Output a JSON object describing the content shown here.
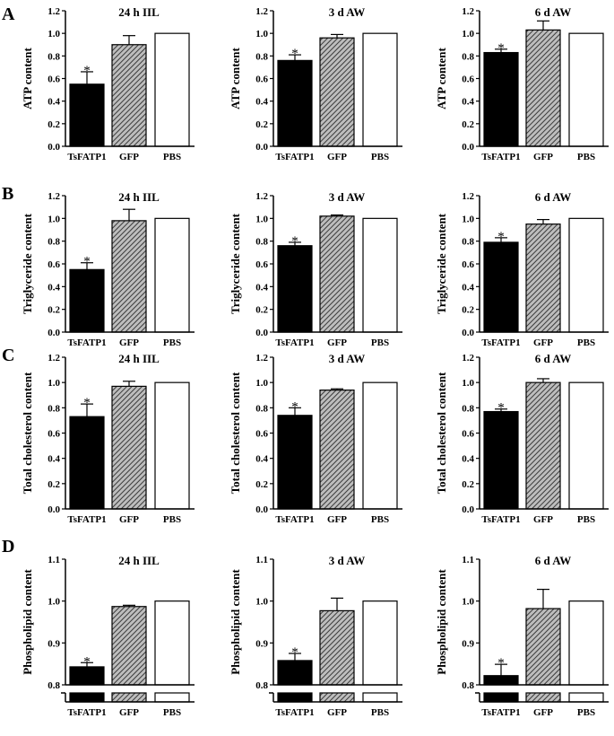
{
  "panels": [
    {
      "label": "A",
      "ylabel": "ATP content"
    },
    {
      "label": "B",
      "ylabel": "Triglyceride content"
    },
    {
      "label": "C",
      "ylabel": "Total cholesterol content"
    },
    {
      "label": "D",
      "ylabel": "Phospholipid content"
    }
  ],
  "colors": {
    "tsfatp1": "#000000",
    "gfp": "#8a8a8a",
    "pbs": "#ffffff",
    "axis": "#000000"
  },
  "chart_data": [
    {
      "type": "bar",
      "panel": "A",
      "title": "24 h IIL",
      "ylabel": "ATP content",
      "categories": [
        "TsFATP1",
        "GFP",
        "PBS"
      ],
      "values": [
        0.55,
        0.9,
        1.0
      ],
      "errors": [
        0.11,
        0.08,
        0.0
      ],
      "significance": [
        "*",
        "",
        ""
      ],
      "ylim": [
        0,
        1.2
      ],
      "yticks": [
        "0.0",
        "0.2",
        "0.4",
        "0.6",
        "0.8",
        "1.0",
        "1.2"
      ],
      "broken_axis": false
    },
    {
      "type": "bar",
      "panel": "A",
      "title": "3 d AW",
      "ylabel": "ATP content",
      "categories": [
        "TsFATP1",
        "GFP",
        "PBS"
      ],
      "values": [
        0.76,
        0.96,
        1.0
      ],
      "errors": [
        0.05,
        0.03,
        0.0
      ],
      "significance": [
        "*",
        "",
        ""
      ],
      "ylim": [
        0,
        1.2
      ],
      "yticks": [
        "0.0",
        "0.2",
        "0.4",
        "0.6",
        "0.8",
        "1.0",
        "1.2"
      ],
      "broken_axis": false
    },
    {
      "type": "bar",
      "panel": "A",
      "title": "6 d AW",
      "ylabel": "ATP content",
      "categories": [
        "TsFATP1",
        "GFP",
        "PBS"
      ],
      "values": [
        0.83,
        1.03,
        1.0
      ],
      "errors": [
        0.03,
        0.08,
        0.0
      ],
      "significance": [
        "*",
        "",
        ""
      ],
      "ylim": [
        0,
        1.2
      ],
      "yticks": [
        "0.0",
        "0.2",
        "0.4",
        "0.6",
        "0.8",
        "1.0",
        "1.2"
      ],
      "broken_axis": false
    },
    {
      "type": "bar",
      "panel": "B",
      "title": "24 h IIL",
      "ylabel": "Triglyceride content",
      "categories": [
        "TsFATP1",
        "GFP",
        "PBS"
      ],
      "values": [
        0.55,
        0.98,
        1.0
      ],
      "errors": [
        0.06,
        0.1,
        0.0
      ],
      "significance": [
        "*",
        "",
        ""
      ],
      "ylim": [
        0,
        1.2
      ],
      "yticks": [
        "0.0",
        "0.2",
        "0.4",
        "0.6",
        "0.8",
        "1.0",
        "1.2"
      ],
      "broken_axis": false
    },
    {
      "type": "bar",
      "panel": "B",
      "title": "3 d AW",
      "ylabel": "Triglyceride content",
      "categories": [
        "TsFATP1",
        "GFP",
        "PBS"
      ],
      "values": [
        0.76,
        1.02,
        1.0
      ],
      "errors": [
        0.03,
        0.01,
        0.0
      ],
      "significance": [
        "*",
        "",
        ""
      ],
      "ylim": [
        0,
        1.2
      ],
      "yticks": [
        "0.0",
        "0.2",
        "0.4",
        "0.6",
        "0.8",
        "1.0",
        "1.2"
      ],
      "broken_axis": false
    },
    {
      "type": "bar",
      "panel": "B",
      "title": "6 d AW",
      "ylabel": "Triglyceride content",
      "categories": [
        "TsFATP1",
        "GFP",
        "PBS"
      ],
      "values": [
        0.79,
        0.95,
        1.0
      ],
      "errors": [
        0.04,
        0.04,
        0.0
      ],
      "significance": [
        "*",
        "",
        ""
      ],
      "ylim": [
        0,
        1.2
      ],
      "yticks": [
        "0.0",
        "0.2",
        "0.4",
        "0.6",
        "0.8",
        "1.0",
        "1.2"
      ],
      "broken_axis": false
    },
    {
      "type": "bar",
      "panel": "C",
      "title": "24 h IIL",
      "ylabel": "Total cholesterol content",
      "categories": [
        "TsFATP1",
        "GFP",
        "PBS"
      ],
      "values": [
        0.73,
        0.97,
        1.0
      ],
      "errors": [
        0.1,
        0.04,
        0.0
      ],
      "significance": [
        "*",
        "",
        ""
      ],
      "ylim": [
        0,
        1.2
      ],
      "yticks": [
        "0.0",
        "0.2",
        "0.4",
        "0.6",
        "0.8",
        "1.0",
        "1.2"
      ],
      "broken_axis": false
    },
    {
      "type": "bar",
      "panel": "C",
      "title": "3 d AW",
      "ylabel": "Total cholesterol content",
      "categories": [
        "TsFATP1",
        "GFP",
        "PBS"
      ],
      "values": [
        0.74,
        0.94,
        1.0
      ],
      "errors": [
        0.06,
        0.01,
        0.0
      ],
      "significance": [
        "*",
        "",
        ""
      ],
      "ylim": [
        0,
        1.2
      ],
      "yticks": [
        "0.0",
        "0.2",
        "0.4",
        "0.6",
        "0.8",
        "1.0",
        "1.2"
      ],
      "broken_axis": false
    },
    {
      "type": "bar",
      "panel": "C",
      "title": "6 d AW",
      "ylabel": "Total cholesterol content",
      "categories": [
        "TsFATP1",
        "GFP",
        "PBS"
      ],
      "values": [
        0.77,
        1.0,
        1.0
      ],
      "errors": [
        0.02,
        0.03,
        0.0
      ],
      "significance": [
        "*",
        "",
        ""
      ],
      "ylim": [
        0,
        1.2
      ],
      "yticks": [
        "0.0",
        "0.2",
        "0.4",
        "0.6",
        "0.8",
        "1.0",
        "1.2"
      ],
      "broken_axis": false
    },
    {
      "type": "bar",
      "panel": "D",
      "title": "24 h IIL",
      "ylabel": "Phospholipid content",
      "categories": [
        "TsFATP1",
        "GFP",
        "PBS"
      ],
      "values": [
        0.843,
        0.987,
        1.0
      ],
      "errors": [
        0.01,
        0.003,
        0.0
      ],
      "significance": [
        "*",
        "",
        ""
      ],
      "ylim": [
        0.8,
        1.1
      ],
      "yticks": [
        "0.8",
        "0.9",
        "1.0",
        "1.1"
      ],
      "broken_axis": true
    },
    {
      "type": "bar",
      "panel": "D",
      "title": "3 d AW",
      "ylabel": "Phospholipid content",
      "categories": [
        "TsFATP1",
        "GFP",
        "PBS"
      ],
      "values": [
        0.858,
        0.977,
        1.0
      ],
      "errors": [
        0.017,
        0.03,
        0.0
      ],
      "significance": [
        "*",
        "",
        ""
      ],
      "ylim": [
        0.8,
        1.1
      ],
      "yticks": [
        "0.8",
        "0.9",
        "1.0",
        "1.1"
      ],
      "broken_axis": true
    },
    {
      "type": "bar",
      "panel": "D",
      "title": "6 d AW",
      "ylabel": "Phospholipid content",
      "categories": [
        "TsFATP1",
        "GFP",
        "PBS"
      ],
      "values": [
        0.822,
        0.982,
        1.0
      ],
      "errors": [
        0.027,
        0.046,
        0.0
      ],
      "significance": [
        "*",
        "",
        ""
      ],
      "ylim": [
        0.8,
        1.1
      ],
      "yticks": [
        "0.8",
        "0.9",
        "1.0",
        "1.1"
      ],
      "broken_axis": true
    }
  ]
}
